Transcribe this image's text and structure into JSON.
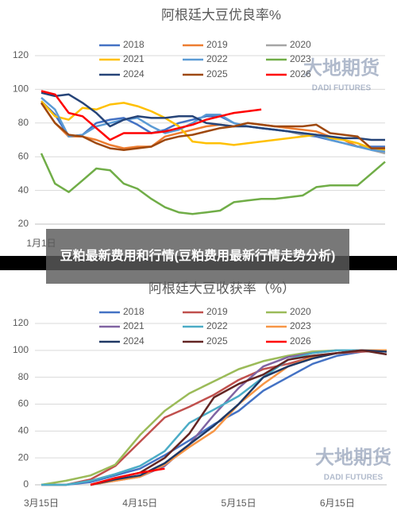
{
  "chart_data": [
    {
      "type": "line",
      "title": "阿根廷大豆优良率%",
      "categories": [
        "1月1日",
        null,
        null,
        null,
        null,
        null,
        null,
        null,
        null,
        null,
        null,
        null,
        null,
        null,
        null,
        null,
        null,
        null,
        null,
        null,
        null,
        null,
        null,
        null,
        null,
        null
      ],
      "ylim": [
        20,
        120
      ],
      "yticks": [
        20,
        40,
        60,
        80,
        100,
        120
      ],
      "grid": true,
      "watermark": [
        "大地期货",
        "DADI FUTURES"
      ],
      "series": [
        {
          "name": "2018",
          "color": "#4472c4",
          "values": [
            93,
            85,
            72,
            73,
            80,
            82,
            83,
            79,
            74,
            76,
            80,
            82,
            84,
            84,
            80,
            78,
            77,
            76,
            75,
            73,
            72,
            70,
            68,
            66,
            66,
            66
          ]
        },
        {
          "name": "2019",
          "color": "#ed7d31",
          "values": [
            92,
            80,
            72,
            72,
            70,
            67,
            65,
            66,
            66,
            72,
            74,
            76,
            78,
            79,
            78,
            80,
            79,
            78,
            77,
            76,
            75,
            72,
            70,
            66,
            65,
            65
          ]
        },
        {
          "name": "2020",
          "color": "#a5a5a5",
          "values": [
            null,
            null,
            null,
            null,
            null,
            null,
            null,
            null,
            null,
            null,
            null,
            null,
            null,
            null,
            null,
            null,
            null,
            null,
            75,
            73,
            73,
            72,
            70,
            68,
            64,
            62
          ]
        },
        {
          "name": "2021",
          "color": "#ffc000",
          "values": [
            93,
            84,
            82,
            89,
            88,
            91,
            92,
            90,
            87,
            83,
            78,
            69,
            68,
            68,
            67,
            68,
            69,
            70,
            71,
            72,
            73,
            71,
            70,
            68,
            65,
            64
          ]
        },
        {
          "name": "2022",
          "color": "#5b9bd5",
          "values": [
            95,
            88,
            72,
            73,
            78,
            80,
            82,
            83,
            78,
            74,
            76,
            80,
            85,
            85,
            80,
            78,
            77,
            76,
            75,
            74,
            73,
            70,
            68,
            66,
            64,
            63
          ]
        },
        {
          "name": "2023",
          "color": "#70ad47",
          "values": [
            62,
            44,
            39,
            46,
            53,
            52,
            44,
            41,
            35,
            30,
            27,
            26,
            27,
            28,
            33,
            34,
            35,
            35,
            36,
            37,
            42,
            43,
            43,
            43,
            50,
            57
          ]
        },
        {
          "name": "2024",
          "color": "#264478",
          "values": [
            98,
            96,
            97,
            92,
            86,
            78,
            82,
            84,
            83,
            83,
            84,
            84,
            80,
            79,
            78,
            78,
            77,
            76,
            75,
            74,
            73,
            72,
            71,
            71,
            70,
            70
          ]
        },
        {
          "name": "2025",
          "color": "#9e480e",
          "values": [
            92,
            80,
            73,
            72,
            68,
            65,
            64,
            65,
            66,
            70,
            72,
            73,
            75,
            77,
            78,
            80,
            79,
            78,
            78,
            78,
            79,
            74,
            73,
            72,
            65,
            65
          ]
        },
        {
          "name": "2026",
          "color": "#ff0000",
          "values": [
            99,
            97,
            86,
            84,
            77,
            70,
            74,
            74,
            74,
            75,
            77,
            79,
            82,
            84,
            86,
            87,
            88,
            null,
            null,
            null,
            null,
            null,
            null,
            null,
            null,
            null
          ]
        }
      ]
    },
    {
      "type": "line",
      "title": "阿根廷大豆收获率（%）",
      "categories": [
        "3月15日",
        null,
        null,
        null,
        "4月15日",
        null,
        null,
        null,
        "5月15日",
        null,
        null,
        null,
        "6月15日",
        null,
        null
      ],
      "ylim": [
        0,
        120
      ],
      "yticks": [
        0,
        20,
        40,
        60,
        80,
        100,
        120
      ],
      "grid": true,
      "watermark": [
        "大地期货",
        "DADI FUTURES"
      ],
      "series": [
        {
          "name": "2018",
          "color": "#4472c4",
          "values": [
            0,
            0,
            2,
            7,
            12,
            22,
            33,
            45,
            55,
            70,
            80,
            90,
            96,
            99,
            100
          ]
        },
        {
          "name": "2019",
          "color": "#c0504d",
          "values": [
            0,
            0,
            4,
            14,
            32,
            50,
            58,
            67,
            78,
            86,
            90,
            95,
            98,
            99,
            100
          ]
        },
        {
          "name": "2020",
          "color": "#9bbb59",
          "values": [
            0,
            3,
            7,
            15,
            37,
            55,
            68,
            77,
            86,
            92,
            96,
            99,
            100,
            100,
            100
          ]
        },
        {
          "name": "2021",
          "color": "#8064a2",
          "values": [
            null,
            null,
            0,
            3,
            6,
            14,
            30,
            52,
            72,
            88,
            95,
            98,
            100,
            100,
            100
          ]
        },
        {
          "name": "2022",
          "color": "#4bacc6",
          "values": [
            0,
            0,
            3,
            8,
            14,
            25,
            46,
            56,
            66,
            80,
            93,
            98,
            100,
            100,
            100
          ]
        },
        {
          "name": "2023",
          "color": "#f79646",
          "values": [
            null,
            null,
            0,
            3,
            6,
            15,
            28,
            40,
            60,
            75,
            88,
            95,
            98,
            100,
            100
          ]
        },
        {
          "name": "2024",
          "color": "#1f3864",
          "values": [
            null,
            null,
            0,
            4,
            7,
            16,
            30,
            44,
            60,
            80,
            88,
            94,
            98,
            100,
            99
          ]
        },
        {
          "name": "2025",
          "color": "#632523",
          "values": [
            null,
            null,
            0,
            5,
            9,
            20,
            38,
            65,
            75,
            82,
            93,
            96,
            98,
            100,
            97
          ]
        },
        {
          "name": "2026",
          "color": "#ff0000",
          "values": [
            null,
            null,
            0,
            5,
            9,
            12,
            null,
            null,
            null,
            null,
            null,
            null,
            null,
            null,
            null
          ]
        }
      ]
    }
  ],
  "overlay": {
    "title": "豆粕最新费用和行情(豆粕费用最新行情走势分析)"
  }
}
